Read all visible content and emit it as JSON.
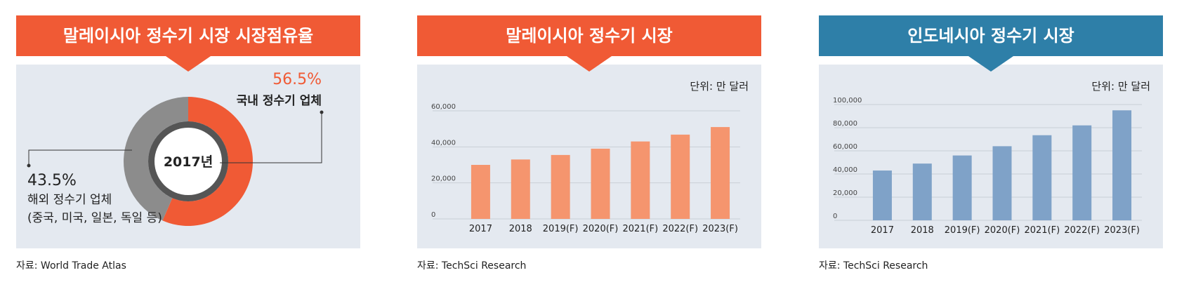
{
  "colors": {
    "header_red": "#f05a35",
    "header_blue": "#2e7fa8",
    "bar_orange": "#f5956e",
    "bar_blue": "#7fa2c8",
    "donut_red": "#f05a35",
    "donut_gray": "#8c8c8c",
    "accent_text": "#f05a35"
  },
  "panels": [
    {
      "title": "말레이시아 정수기 시장 시장점유율",
      "source": "자료: World Trade Atlas"
    },
    {
      "title": "말레이시아 정수기 시장",
      "source": "자료: TechSci Research",
      "unit": "단위: 만 달러"
    },
    {
      "title": "인도네시아 정수기 시장",
      "source": "자료: TechSci Research",
      "unit": "단위: 만 달러"
    }
  ],
  "chart_data": [
    {
      "type": "pie",
      "title": "말레이시아 정수기 시장 시장점유율",
      "center_label": "2017년",
      "slices": [
        {
          "label": "국내 정수기 업체",
          "value": 56.5,
          "value_label": "56.5%"
        },
        {
          "label": "해외 정수기 업체",
          "sublabel": "(중국, 미국, 일본, 독일 등)",
          "value": 43.5,
          "value_label": "43.5%"
        }
      ]
    },
    {
      "type": "bar",
      "title": "말레이시아 정수기 시장",
      "unit": "단위: 만 달러",
      "categories": [
        "2017",
        "2018",
        "2019(F)",
        "2020(F)",
        "2021(F)",
        "2022(F)",
        "2023(F)"
      ],
      "values": [
        30000,
        33000,
        35500,
        39000,
        43000,
        46800,
        51000
      ],
      "yticks": [
        "0",
        "20,000",
        "40,000",
        "60,000"
      ],
      "ylim": [
        0,
        60000
      ],
      "grid": true
    },
    {
      "type": "bar",
      "title": "인도네시아 정수기 시장",
      "unit": "단위: 만 달러",
      "categories": [
        "2017",
        "2018",
        "2019(F)",
        "2020(F)",
        "2021(F)",
        "2022(F)",
        "2023(F)"
      ],
      "values": [
        43000,
        49000,
        56000,
        64000,
        73500,
        82000,
        95000
      ],
      "yticks": [
        "0",
        "20,000",
        "40,000",
        "60,000",
        "80,000",
        "100,000"
      ],
      "ylim": [
        0,
        100000
      ],
      "grid": true
    }
  ]
}
